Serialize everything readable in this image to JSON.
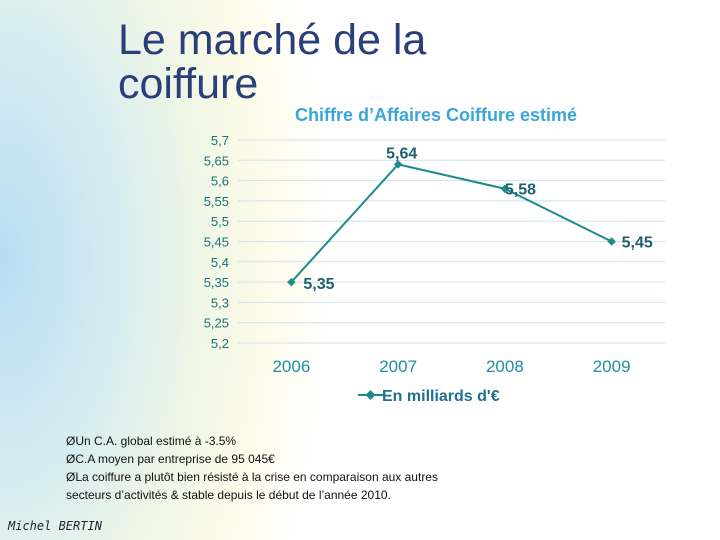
{
  "slide": {
    "title_line1": "Le marché de la",
    "title_line2": "coiffure",
    "notes": [
      "ØUn C.A. global estimé à -3.5%",
      "ØC.A moyen par entreprise de 95 045€",
      "ØLa coiffure a plutôt bien résisté à la crise en comparaison aux autres",
      "secteurs d’activités & stable depuis le début de l’année 2010."
    ],
    "author": "Michel BERTIN"
  },
  "colors": {
    "line": "#1f8a8a",
    "title": "#2a3f7a",
    "chart_title": "#3aa6d8",
    "grid": "#cfe3ea"
  },
  "chart_data": {
    "type": "line",
    "title": "Chiffre d’Affaires Coiffure estimé",
    "categories": [
      "2006",
      "2007",
      "2008",
      "2009"
    ],
    "series": [
      {
        "name": "En milliards d'€",
        "values": [
          5.35,
          5.64,
          5.58,
          5.45
        ]
      }
    ],
    "data_labels": [
      "5,35",
      "5,64",
      "5,58",
      "5,45"
    ],
    "y_ticks": [
      "5,2",
      "5,25",
      "5,3",
      "5,35",
      "5,4",
      "5,45",
      "5,5",
      "5,55",
      "5,6",
      "5,65",
      "5,7"
    ],
    "ylim": [
      5.2,
      5.7
    ],
    "grid": true,
    "legend": "bottom"
  }
}
